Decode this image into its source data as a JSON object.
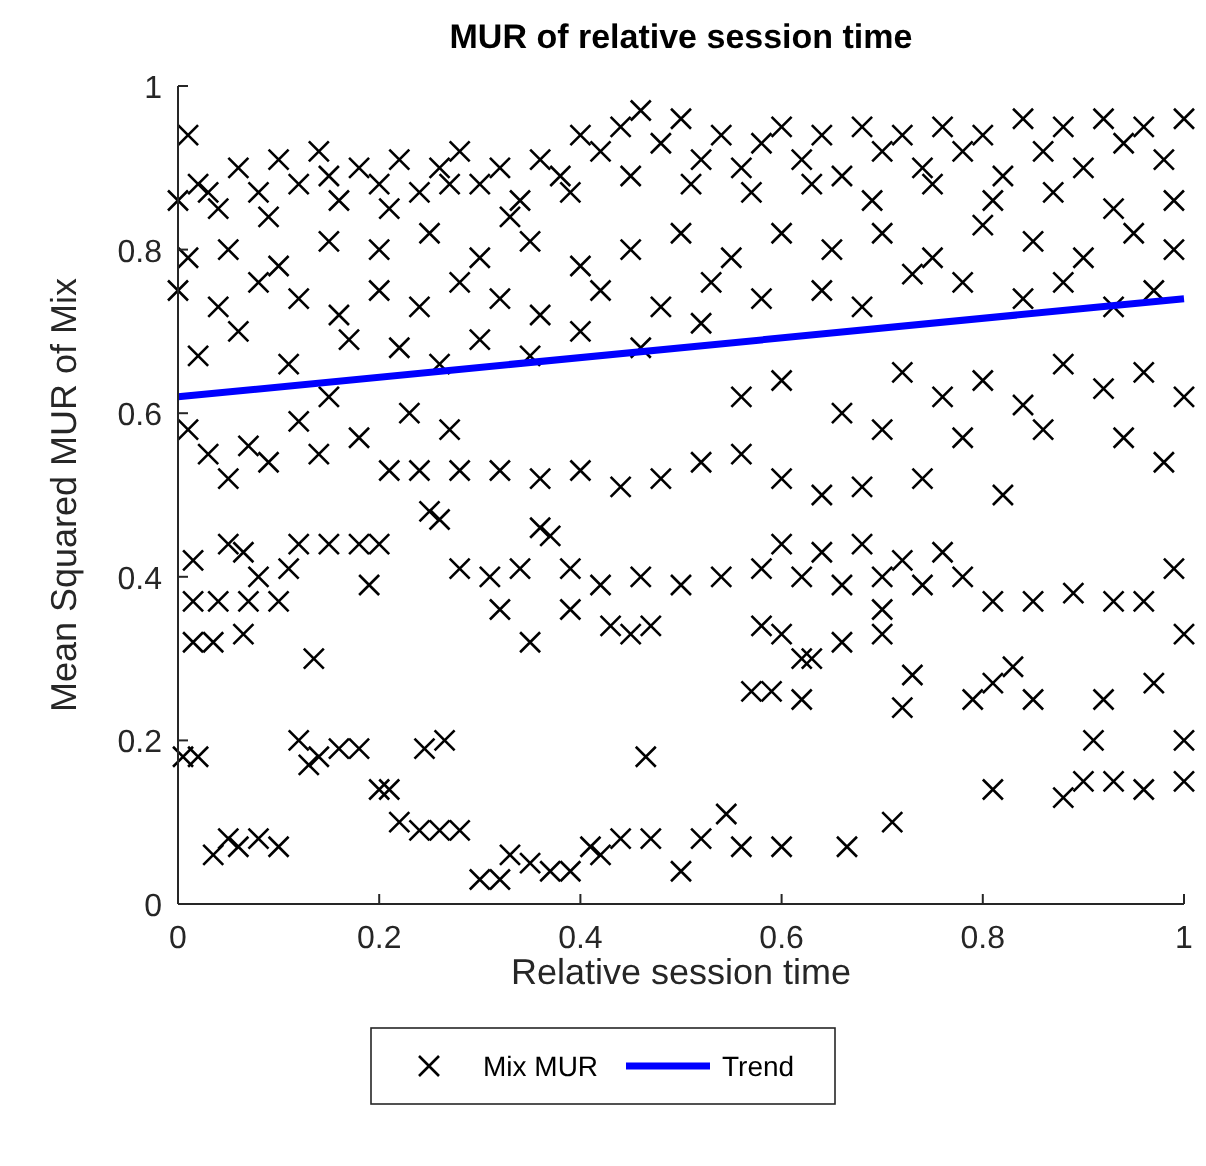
{
  "chart_data": {
    "type": "scatter",
    "title": "MUR of relative session time",
    "xlabel": "Relative session time",
    "ylabel": "Mean Squared MUR of Mix",
    "xlim": [
      0,
      1
    ],
    "ylim": [
      0,
      1
    ],
    "xticks": [
      0,
      0.2,
      0.4,
      0.6,
      0.8,
      1
    ],
    "yticks": [
      0,
      0.2,
      0.4,
      0.6,
      0.8,
      1
    ],
    "grid": false,
    "legend": "bottom",
    "series": [
      {
        "name": "Mix MUR",
        "color": "#000000",
        "marker": "cross",
        "x": [
          0,
          0.01,
          0.02,
          0.04,
          0.06,
          0.08,
          0.1,
          0.12,
          0.14,
          0.16,
          0.18,
          0.2,
          0.22,
          0.24,
          0.26,
          0.28,
          0.3,
          0.32,
          0.34,
          0.36,
          0.38,
          0.4,
          0.42,
          0.44,
          0.46,
          0.48,
          0.5,
          0.52,
          0.54,
          0.56,
          0.58,
          0.6,
          0.62,
          0.64,
          0.66,
          0.68,
          0.7,
          0.72,
          0.74,
          0.76,
          0.78,
          0.8,
          0.82,
          0.84,
          0.86,
          0.88,
          0.9,
          0.92,
          0.94,
          0.96,
          0.98,
          1,
          0.03,
          0.09,
          0.15,
          0.21,
          0.27,
          0.33,
          0.39,
          0.45,
          0.51,
          0.57,
          0.63,
          0.69,
          0.75,
          0.81,
          0.87,
          0.93,
          0.99,
          0.01,
          0.05,
          0.1,
          0.15,
          0.2,
          0.25,
          0.3,
          0.35,
          0.4,
          0.45,
          0.5,
          0.55,
          0.6,
          0.65,
          0.7,
          0.75,
          0.8,
          0.85,
          0.9,
          0.95,
          0.99,
          0,
          0.04,
          0.08,
          0.12,
          0.16,
          0.2,
          0.24,
          0.28,
          0.32,
          0.36,
          0.42,
          0.48,
          0.53,
          0.58,
          0.64,
          0.68,
          0.73,
          0.78,
          0.84,
          0.88,
          0.93,
          0.97,
          0.02,
          0.06,
          0.11,
          0.17,
          0.22,
          0.26,
          0.3,
          0.35,
          0.4,
          0.46,
          0.52,
          0.56,
          0.6,
          0.66,
          0.72,
          0.76,
          0.8,
          0.84,
          0.88,
          0.92,
          0.96,
          1,
          0.7,
          0.78,
          0.86,
          0.94,
          0.01,
          0.03,
          0.05,
          0.07,
          0.09,
          0.12,
          0.14,
          0.18,
          0.21,
          0.24,
          0.28,
          0.32,
          0.36,
          0.4,
          0.44,
          0.48,
          0.52,
          0.56,
          0.6,
          0.64,
          0.68,
          0.74,
          0.82,
          0.98,
          0.15,
          0.23,
          0.27,
          0.015,
          0.05,
          0.065,
          0.015,
          0.04,
          0.07,
          0.1,
          0.08,
          0.11,
          0.12,
          0.15,
          0.18,
          0.2,
          0.19,
          0.25,
          0.26,
          0.36,
          0.37,
          0.28,
          0.31,
          0.34,
          0.39,
          0.32,
          0.39,
          0.42,
          0.46,
          0.5,
          0.54,
          0.58,
          0.62,
          0.66,
          0.7,
          0.74,
          0.78,
          0.81,
          0.85,
          0.89,
          0.93,
          0.96,
          0.6,
          0.64,
          0.68,
          0.72,
          0.76,
          0.99,
          0.015,
          0.035,
          0.065,
          0.135,
          0.35,
          0.43,
          0.45,
          0.47,
          0.58,
          0.6,
          0.62,
          0.63,
          0.66,
          0.7,
          0.7,
          0.57,
          0.59,
          0.62,
          0.72,
          0.73,
          0.79,
          0.81,
          0.83,
          0.85,
          0.92,
          0.97,
          1,
          0.005,
          0.02,
          0.035,
          0.05,
          0.06,
          0.08,
          0.1,
          0.12,
          0.13,
          0.14,
          0.16,
          0.18,
          0.2,
          0.21,
          0.22,
          0.24,
          0.26,
          0.28,
          0.245,
          0.265,
          0.3,
          0.32,
          0.33,
          0.35,
          0.37,
          0.39,
          0.41,
          0.42,
          0.44,
          0.47,
          0.5,
          0.52,
          0.545,
          0.56,
          0.6,
          0.665,
          0.71,
          0.465,
          0.81,
          0.88,
          0.9,
          0.93,
          0.96,
          0.91,
          1,
          1
        ],
        "values": [
          0.86,
          0.94,
          0.88,
          0.85,
          0.9,
          0.87,
          0.91,
          0.88,
          0.92,
          0.86,
          0.9,
          0.88,
          0.91,
          0.87,
          0.9,
          0.92,
          0.88,
          0.9,
          0.86,
          0.91,
          0.89,
          0.94,
          0.92,
          0.95,
          0.97,
          0.93,
          0.96,
          0.91,
          0.94,
          0.9,
          0.93,
          0.95,
          0.91,
          0.94,
          0.89,
          0.95,
          0.92,
          0.94,
          0.9,
          0.95,
          0.92,
          0.94,
          0.89,
          0.96,
          0.92,
          0.95,
          0.9,
          0.96,
          0.93,
          0.95,
          0.91,
          0.96,
          0.87,
          0.84,
          0.89,
          0.85,
          0.88,
          0.84,
          0.87,
          0.89,
          0.88,
          0.87,
          0.88,
          0.86,
          0.88,
          0.86,
          0.87,
          0.85,
          0.86,
          0.79,
          0.8,
          0.78,
          0.81,
          0.8,
          0.82,
          0.79,
          0.81,
          0.78,
          0.8,
          0.82,
          0.79,
          0.82,
          0.8,
          0.82,
          0.79,
          0.83,
          0.81,
          0.79,
          0.82,
          0.8,
          0.75,
          0.73,
          0.76,
          0.74,
          0.72,
          0.75,
          0.73,
          0.76,
          0.74,
          0.72,
          0.75,
          0.73,
          0.76,
          0.74,
          0.75,
          0.73,
          0.77,
          0.76,
          0.74,
          0.76,
          0.73,
          0.75,
          0.67,
          0.7,
          0.66,
          0.69,
          0.68,
          0.66,
          0.69,
          0.67,
          0.7,
          0.68,
          0.71,
          0.62,
          0.64,
          0.6,
          0.65,
          0.62,
          0.64,
          0.61,
          0.66,
          0.63,
          0.65,
          0.62,
          0.58,
          0.57,
          0.58,
          0.57,
          0.58,
          0.55,
          0.52,
          0.56,
          0.54,
          0.59,
          0.55,
          0.57,
          0.53,
          0.53,
          0.53,
          0.53,
          0.52,
          0.53,
          0.51,
          0.52,
          0.54,
          0.55,
          0.52,
          0.5,
          0.51,
          0.52,
          0.5,
          0.54,
          0.62,
          0.6,
          0.58,
          0.42,
          0.44,
          0.43,
          0.37,
          0.37,
          0.37,
          0.37,
          0.4,
          0.41,
          0.44,
          0.44,
          0.44,
          0.44,
          0.39,
          0.48,
          0.47,
          0.46,
          0.45,
          0.41,
          0.4,
          0.41,
          0.41,
          0.36,
          0.36,
          0.39,
          0.4,
          0.39,
          0.4,
          0.41,
          0.4,
          0.39,
          0.4,
          0.39,
          0.4,
          0.37,
          0.37,
          0.38,
          0.37,
          0.37,
          0.44,
          0.43,
          0.44,
          0.42,
          0.43,
          0.41,
          0.32,
          0.32,
          0.33,
          0.3,
          0.32,
          0.34,
          0.33,
          0.34,
          0.34,
          0.33,
          0.3,
          0.3,
          0.32,
          0.36,
          0.33,
          0.26,
          0.26,
          0.25,
          0.24,
          0.28,
          0.25,
          0.27,
          0.29,
          0.25,
          0.25,
          0.27,
          0.33,
          0.18,
          0.18,
          0.06,
          0.08,
          0.07,
          0.08,
          0.07,
          0.2,
          0.17,
          0.18,
          0.19,
          0.19,
          0.14,
          0.14,
          0.1,
          0.09,
          0.09,
          0.09,
          0.19,
          0.2,
          0.03,
          0.03,
          0.06,
          0.05,
          0.04,
          0.04,
          0.07,
          0.06,
          0.08,
          0.08,
          0.04,
          0.08,
          0.11,
          0.07,
          0.07,
          0.07,
          0.1,
          0.18,
          0.14,
          0.13,
          0.15,
          0.15,
          0.14,
          0.2,
          0.15,
          0.2
        ]
      },
      {
        "name": "Trend",
        "type": "line",
        "color": "#0000ff",
        "marker": "none",
        "line_style": "solid",
        "x": [
          0,
          1
        ],
        "values": [
          0.62,
          0.74
        ]
      }
    ]
  }
}
